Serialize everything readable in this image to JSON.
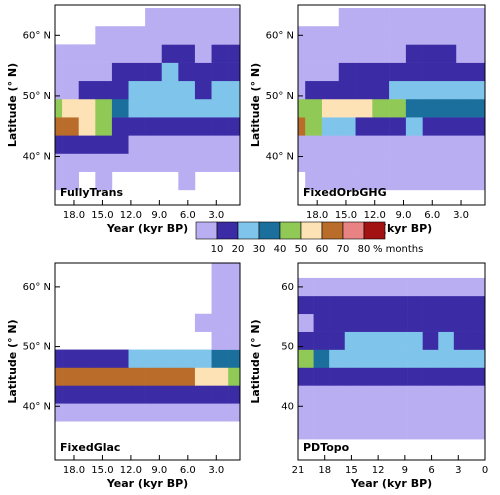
{
  "chart_data": [
    {
      "type": "heatmap",
      "title": "FullyTrans",
      "xlabel": "Year (kyr BP)",
      "ylabel": "Latitude (° N)",
      "x": [
        20.125,
        18.375,
        16.625,
        14.875,
        13.125,
        11.375,
        9.625,
        7.875,
        6.125,
        4.375,
        2.625,
        0.875
      ],
      "y": [
        36,
        39,
        42,
        45,
        48,
        51,
        54,
        57,
        60,
        63
      ],
      "values": [
        [
          5,
          5,
          null,
          5,
          null,
          null,
          null,
          null,
          5,
          null,
          null,
          null
        ],
        [
          5,
          5,
          5,
          5,
          5,
          5,
          5,
          5,
          5,
          5,
          5,
          5
        ],
        [
          15,
          15,
          15,
          15,
          15,
          5,
          5,
          5,
          5,
          5,
          5,
          5
        ],
        [
          65,
          65,
          55,
          45,
          15,
          15,
          15,
          15,
          15,
          15,
          15,
          15
        ],
        [
          45,
          55,
          55,
          45,
          35,
          25,
          25,
          25,
          25,
          25,
          25,
          25
        ],
        [
          5,
          5,
          15,
          15,
          15,
          25,
          25,
          25,
          25,
          15,
          25,
          25
        ],
        [
          5,
          5,
          5,
          5,
          15,
          15,
          15,
          25,
          15,
          15,
          15,
          15
        ],
        [
          5,
          5,
          5,
          5,
          5,
          5,
          5,
          15,
          15,
          5,
          15,
          15
        ],
        [
          null,
          null,
          null,
          5,
          5,
          5,
          5,
          5,
          5,
          5,
          5,
          5
        ],
        [
          null,
          null,
          null,
          null,
          null,
          null,
          5,
          5,
          5,
          5,
          5,
          5
        ]
      ],
      "xlim": [
        20,
        0.5
      ],
      "ylim": [
        32,
        65
      ],
      "xticks": [
        {
          "value": 18,
          "label": "18.0"
        },
        {
          "value": 15,
          "label": "15.0"
        },
        {
          "value": 12,
          "label": "12.0"
        },
        {
          "value": 9,
          "label": "9.0"
        },
        {
          "value": 6,
          "label": "6.0"
        },
        {
          "value": 3,
          "label": "3.0"
        }
      ],
      "yticks": [
        {
          "value": 40,
          "label": "40° N"
        },
        {
          "value": 50,
          "label": "50° N"
        },
        {
          "value": 60,
          "label": "60° N"
        }
      ]
    },
    {
      "type": "heatmap",
      "title": "FixedOrbGHG",
      "xlabel": "Year (kyr BP)",
      "ylabel": "Latitude (° N)",
      "x": [
        20.125,
        18.375,
        16.625,
        14.875,
        13.125,
        11.375,
        9.625,
        7.875,
        6.125,
        4.375,
        2.625,
        0.875
      ],
      "y": [
        36,
        39,
        42,
        45,
        48,
        51,
        54,
        57,
        60,
        63
      ],
      "values": [
        [
          null,
          5,
          5,
          5,
          5,
          5,
          5,
          5,
          5,
          5,
          5,
          5
        ],
        [
          5,
          5,
          5,
          5,
          5,
          5,
          5,
          5,
          5,
          5,
          5,
          5
        ],
        [
          5,
          5,
          5,
          5,
          5,
          5,
          5,
          5,
          5,
          5,
          5,
          5
        ],
        [
          65,
          45,
          25,
          25,
          15,
          15,
          15,
          25,
          15,
          15,
          15,
          15
        ],
        [
          45,
          45,
          55,
          55,
          55,
          45,
          45,
          35,
          35,
          35,
          35,
          35
        ],
        [
          5,
          15,
          15,
          15,
          15,
          15,
          25,
          25,
          25,
          25,
          25,
          25
        ],
        [
          5,
          5,
          5,
          15,
          15,
          15,
          15,
          15,
          15,
          15,
          15,
          15
        ],
        [
          5,
          5,
          5,
          5,
          5,
          5,
          5,
          15,
          15,
          15,
          5,
          5
        ],
        [
          5,
          5,
          5,
          5,
          5,
          5,
          5,
          5,
          5,
          5,
          5,
          5
        ],
        [
          null,
          null,
          null,
          5,
          5,
          5,
          5,
          5,
          5,
          5,
          5,
          5
        ]
      ],
      "xlim": [
        20,
        0.5
      ],
      "ylim": [
        32,
        65
      ],
      "xticks": [
        {
          "value": 18,
          "label": "18.0"
        },
        {
          "value": 15,
          "label": "15.0"
        },
        {
          "value": 12,
          "label": "12.0"
        },
        {
          "value": 9,
          "label": "9.0"
        },
        {
          "value": 6,
          "label": "6.0"
        },
        {
          "value": 3,
          "label": "3.0"
        }
      ],
      "yticks": [
        {
          "value": 40,
          "label": "40° N"
        },
        {
          "value": 50,
          "label": "50° N"
        },
        {
          "value": 60,
          "label": "60° N"
        }
      ]
    },
    {
      "type": "heatmap",
      "title": "FixedGlac",
      "xlabel": "Year (kyr BP)",
      "ylabel": "Latitude (° N)",
      "x": [
        20.125,
        18.375,
        16.625,
        14.875,
        13.125,
        11.375,
        9.625,
        7.875,
        6.125,
        4.375,
        2.625,
        0.875
      ],
      "y": [
        36,
        39,
        42,
        45,
        48,
        51,
        54,
        57,
        60,
        63
      ],
      "values": [
        [
          null,
          null,
          null,
          null,
          null,
          null,
          null,
          null,
          null,
          null,
          null,
          null
        ],
        [
          5,
          5,
          5,
          5,
          5,
          5,
          5,
          5,
          5,
          5,
          5,
          5
        ],
        [
          15,
          15,
          15,
          15,
          15,
          15,
          15,
          15,
          15,
          15,
          15,
          15
        ],
        [
          65,
          65,
          65,
          65,
          65,
          65,
          65,
          65,
          65,
          55,
          55,
          45
        ],
        [
          15,
          15,
          15,
          15,
          15,
          25,
          25,
          25,
          25,
          25,
          35,
          35
        ],
        [
          null,
          null,
          null,
          null,
          null,
          null,
          null,
          null,
          null,
          null,
          5,
          5
        ],
        [
          null,
          null,
          null,
          null,
          null,
          null,
          null,
          null,
          null,
          5,
          5,
          5
        ],
        [
          null,
          null,
          null,
          null,
          null,
          null,
          null,
          null,
          null,
          null,
          5,
          5
        ],
        [
          null,
          null,
          null,
          null,
          null,
          null,
          null,
          null,
          null,
          null,
          5,
          5
        ],
        [
          null,
          null,
          null,
          null,
          null,
          null,
          null,
          null,
          null,
          null,
          5,
          5
        ]
      ],
      "xlim": [
        20,
        0.5
      ],
      "ylim": [
        31,
        64
      ],
      "xticks": [
        {
          "value": 18,
          "label": "18.0"
        },
        {
          "value": 15,
          "label": "15.0"
        },
        {
          "value": 12,
          "label": "12.0"
        },
        {
          "value": 9,
          "label": "9.0"
        },
        {
          "value": 6,
          "label": "6.0"
        },
        {
          "value": 3,
          "label": "3.0"
        }
      ],
      "yticks": [
        {
          "value": 40,
          "label": "40° N"
        },
        {
          "value": 50,
          "label": "50° N"
        },
        {
          "value": 60,
          "label": "60° N"
        }
      ]
    },
    {
      "type": "heatmap",
      "title": "PDTopo",
      "xlabel": "Year (kyr BP)",
      "ylabel": "Latitude (° N)",
      "x": [
        20.125,
        18.375,
        16.625,
        14.875,
        13.125,
        11.375,
        9.625,
        7.875,
        6.125,
        4.375,
        2.625,
        0.875
      ],
      "y": [
        36,
        39,
        42,
        45,
        48,
        51,
        54,
        57,
        60,
        63
      ],
      "values": [
        [
          5,
          5,
          5,
          5,
          5,
          5,
          5,
          5,
          5,
          5,
          5,
          5
        ],
        [
          5,
          5,
          5,
          5,
          5,
          5,
          5,
          5,
          5,
          5,
          5,
          5
        ],
        [
          5,
          5,
          5,
          5,
          5,
          5,
          5,
          5,
          5,
          5,
          5,
          5
        ],
        [
          15,
          15,
          15,
          15,
          15,
          15,
          15,
          15,
          15,
          15,
          15,
          15
        ],
        [
          45,
          35,
          25,
          25,
          25,
          25,
          25,
          25,
          25,
          25,
          25,
          25
        ],
        [
          15,
          15,
          15,
          25,
          25,
          25,
          25,
          25,
          15,
          25,
          15,
          15
        ],
        [
          5,
          15,
          15,
          15,
          15,
          15,
          15,
          15,
          15,
          15,
          15,
          15
        ],
        [
          15,
          15,
          15,
          15,
          15,
          15,
          15,
          15,
          15,
          15,
          15,
          15
        ],
        [
          5,
          5,
          5,
          5,
          5,
          5,
          5,
          5,
          5,
          5,
          5,
          5
        ],
        [
          null,
          null,
          null,
          null,
          null,
          null,
          null,
          null,
          null,
          null,
          null,
          null
        ]
      ],
      "xlim": [
        21,
        0
      ],
      "ylim": [
        31,
        64
      ],
      "xticks": [
        21,
        18,
        15,
        12,
        9,
        6,
        3,
        0
      ],
      "yticks": [
        40,
        50,
        60
      ]
    }
  ],
  "colorbar": {
    "levels": [
      10,
      20,
      30,
      40,
      50,
      60,
      70,
      80
    ],
    "colors": [
      "#b9aef2",
      "#3b2ca6",
      "#7fc4ea",
      "#1b6f9c",
      "#91c957",
      "#fde2b6",
      "#ba6c2a",
      "#e98383",
      "#a21212"
    ],
    "label": "% months"
  }
}
